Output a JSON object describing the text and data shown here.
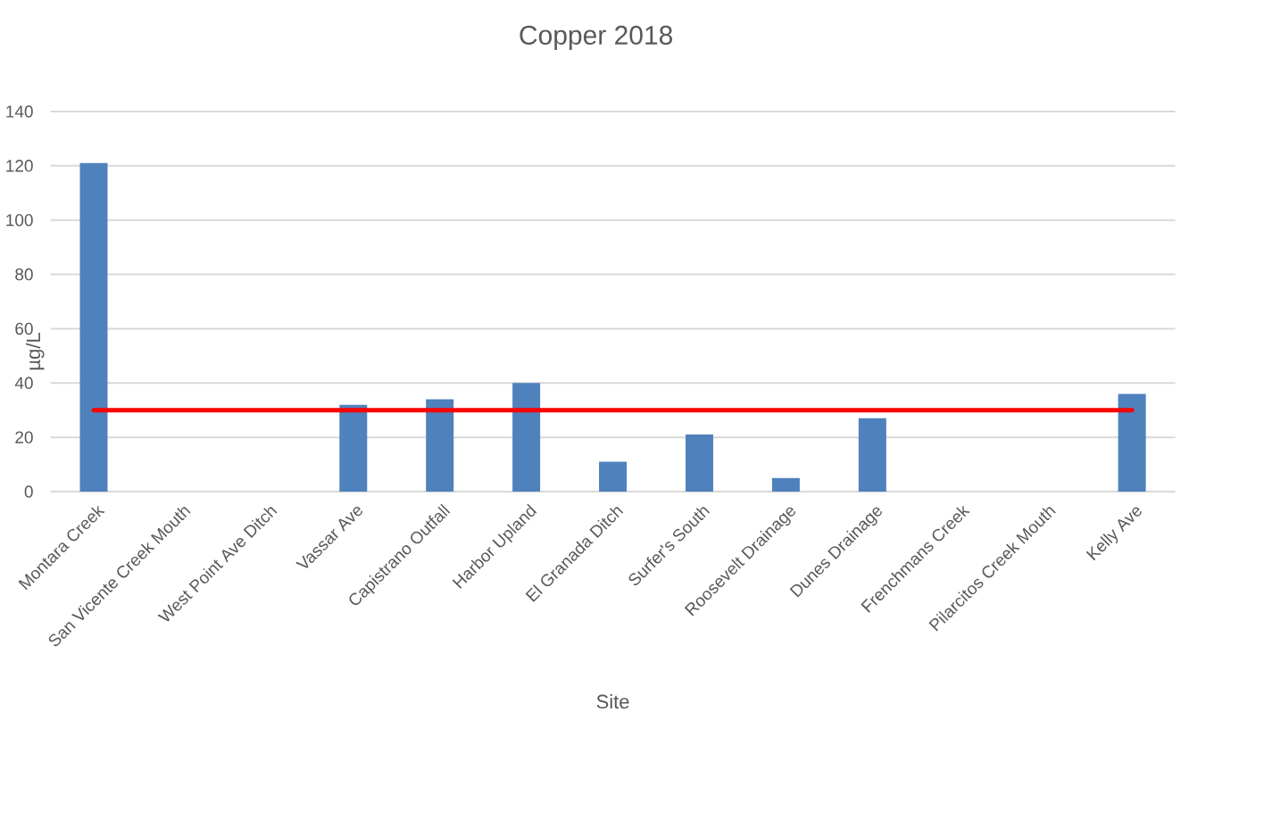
{
  "chart_data": {
    "type": "bar",
    "title": "Copper 2018",
    "xlabel": "Site",
    "ylabel": "µg/L",
    "categories": [
      "Montara Creek",
      "San Vicente Creek Mouth",
      "West Point Ave Ditch",
      "Vassar Ave",
      "Capistrano Outfall",
      "Harbor Upland",
      "El Granada Ditch",
      "Surfer's South",
      "Roosevelt Drainage",
      "Dunes Drainage",
      "Frenchmans Creek",
      "Pilarcitos Creek Mouth",
      "Kelly Ave"
    ],
    "series": [
      {
        "color": "#4f81bd",
        "values": [
          121,
          null,
          null,
          32,
          34,
          40,
          11,
          21,
          5,
          27,
          null,
          null,
          36
        ]
      },
      {
        "type": "line",
        "color": "#ff0000",
        "values": [
          30,
          30,
          30,
          30,
          30,
          30,
          30,
          30,
          30,
          30,
          30,
          30,
          30
        ]
      }
    ],
    "ylim": [
      0,
      140
    ],
    "yticks": [
      0,
      20,
      40,
      60,
      80,
      100,
      120,
      140
    ],
    "grid": "y"
  }
}
